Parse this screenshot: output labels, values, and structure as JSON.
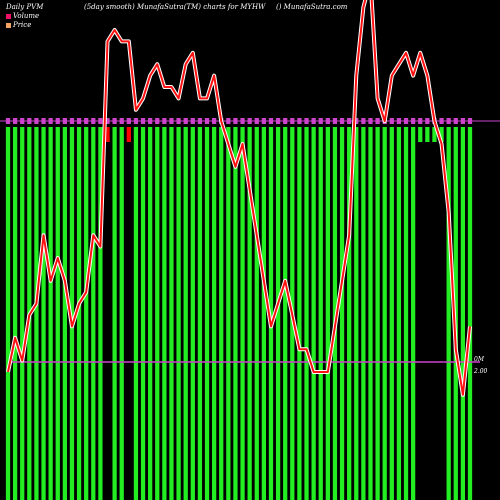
{
  "header": {
    "left": "Daily PVM",
    "middle": "(5day smooth) MunafaSutra(TM) charts for MYHW",
    "right": "() MunafaSutra.com"
  },
  "legend": [
    {
      "label": "Volume",
      "color": "#ee1166"
    },
    {
      "label": "Price",
      "color": "#f4a460"
    }
  ],
  "colors": {
    "background": "#000000",
    "volume_bar": "#22ee22",
    "volume_bar_down": "#ff0000",
    "volume_marker": "#cc44cc",
    "price_line": "#ff1111",
    "price_shadow": "#ffffff",
    "ref_line": "#cc44cc"
  },
  "axis": {
    "volume_label": "0M",
    "price_label": "2.00"
  },
  "chart_data": {
    "type": "bar",
    "volume": [
      1,
      1,
      1,
      1,
      1,
      1,
      1,
      1,
      1,
      1,
      1,
      1,
      1,
      1,
      0,
      1,
      1,
      0,
      1,
      1,
      1,
      1,
      1,
      1,
      1,
      1,
      1,
      1,
      1,
      1,
      1,
      1,
      1,
      1,
      1,
      1,
      1,
      1,
      1,
      1,
      1,
      1,
      1,
      1,
      1,
      1,
      1,
      1,
      1,
      1,
      1,
      1,
      1,
      1,
      1,
      1,
      1,
      1,
      0,
      0,
      0,
      0,
      1,
      1,
      1,
      1
    ],
    "down_days": [
      14,
      17
    ],
    "price": [
      2.0,
      2.15,
      2.05,
      2.25,
      2.3,
      2.6,
      2.4,
      2.5,
      2.4,
      2.2,
      2.3,
      2.35,
      2.6,
      2.55,
      3.45,
      3.5,
      3.45,
      3.45,
      3.15,
      3.2,
      3.3,
      3.35,
      3.25,
      3.25,
      3.2,
      3.35,
      3.4,
      3.2,
      3.2,
      3.3,
      3.1,
      3.0,
      2.9,
      3.0,
      2.8,
      2.6,
      2.4,
      2.2,
      2.3,
      2.4,
      2.25,
      2.1,
      2.1,
      2.0,
      2.0,
      2.0,
      2.2,
      2.4,
      2.6,
      3.3,
      3.6,
      3.8,
      3.2,
      3.1,
      3.3,
      3.35,
      3.4,
      3.3,
      3.4,
      3.3,
      3.1,
      3.0,
      2.7,
      2.1,
      1.9,
      2.2
    ],
    "price_series_name": "Price",
    "volume_series_name": "Volume",
    "price_reference": 2.0
  }
}
